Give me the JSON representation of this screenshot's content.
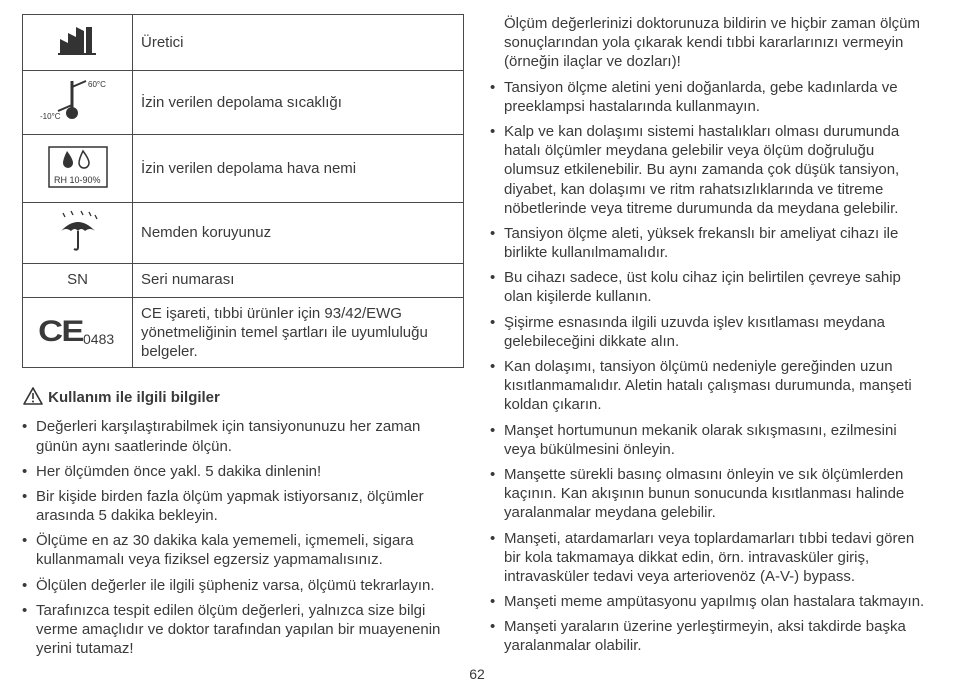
{
  "table": {
    "rows": [
      {
        "desc": "Üretici"
      },
      {
        "desc": "İzin verilen depolama sıcaklığı"
      },
      {
        "desc": "İzin verilen depolama hava nemi"
      },
      {
        "desc": "Nemden koruyunuz"
      },
      {
        "sn": "SN",
        "desc": "Seri numarası"
      },
      {
        "ce_num": "0483",
        "desc": "CE işareti, tıbbi ürünler için 93/42/EWG yönetmeliğinin temel şartları ile uyumluluğu belgeler."
      }
    ]
  },
  "section_title": "Kullanım ile ilgili bilgiler",
  "left_bullets": [
    "Değerleri karşılaştırabilmek için tansiyonunuzu her zaman günün aynı saatlerinde ölçün.",
    "Her ölçümden önce yakl. 5 dakika dinlenin!",
    "Bir kişide birden fazla ölçüm yapmak istiyorsanız, ölçümler arasında 5 dakika bekleyin.",
    "Ölçüme en az 30 dakika kala yememeli, içmemeli, sigara kullanmamalı veya fiziksel egzersiz yapmamalısınız.",
    "Ölçülen değerler ile ilgili şüpheniz varsa, ölçümü tekrarlayın.",
    "Tarafınızca tespit edilen ölçüm değerleri, yalnızca size bilgi verme amaçlıdır ve doktor tarafından yapılan bir muayenenin yerini tutamaz!"
  ],
  "right_intro": "Ölçüm değerlerinizi doktorunuza bildirin ve hiçbir zaman ölçüm sonuçlarından yola çıkarak kendi tıbbi kararlarınızı vermeyin (örneğin ilaçlar ve dozları)!",
  "right_bullets": [
    "Tansiyon ölçme aletini yeni doğanlarda, gebe kadınlarda ve preeklampsi hastalarında kullanmayın.",
    "Kalp ve kan dolaşımı sistemi hastalıkları olması durumunda hatalı ölçümler meydana gelebilir veya ölçüm doğruluğu olumsuz etkilenebilir. Bu aynı zamanda çok düşük tansiyon, diyabet, kan dolaşımı ve ritm rahatsızlıklarında ve titreme nöbetlerinde veya titreme durumunda da meydana gelebilir.",
    "Tansiyon ölçme aleti, yüksek frekanslı bir ameliyat cihazı ile birlikte kullanılmamalıdır.",
    "Bu cihazı sadece, üst kolu cihaz için belirtilen çevreye sahip olan kişilerde kullanın.",
    "Şişirme esnasında ilgili uzuvda işlev kısıtlaması meydana gelebileceğini dikkate alın.",
    "Kan dolaşımı, tansiyon ölçümü nedeniyle gereğinden uzun kısıtlanmamalıdır. Aletin hatalı çalışması durumunda, manşeti koldan çıkarın.",
    "Manşet hortumunun mekanik olarak sıkışmasını, ezilmesini veya bükülmesini önleyin.",
    "Manşette sürekli basınç olmasını önleyin ve sık ölçümlerden kaçının. Kan akışının bunun sonucunda kısıtlanması halinde yaralanmalar meydana gelebilir.",
    "Manşeti, atardamarları veya toplardamarları tıbbi tedavi gören bir kola takmamaya dikkat edin, örn. intravasküler giriş, intravasküler tedavi veya arteriovenöz (A-V-) bypass.",
    "Manşeti meme ampütasyonu yapılmış olan hastalara takmayın.",
    "Manşeti yaraların üzerine yerleştirmeyin, aksi takdirde başka yaralanmalar olabilir."
  ],
  "page_number": "62",
  "temp_labels": {
    "high": "60°C",
    "low": "-10°C"
  },
  "humidity_label": "RH 10-90%"
}
